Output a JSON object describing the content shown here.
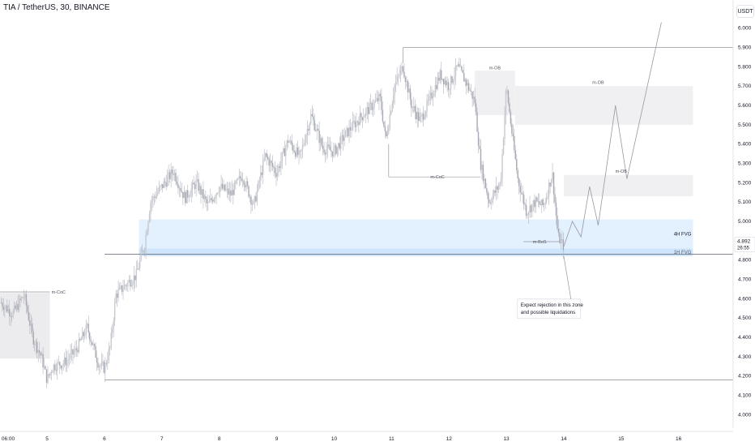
{
  "header": {
    "title": "TIA / TetherUS, 30, BINANCE",
    "currency": "USDT"
  },
  "chart_data": {
    "type": "candlestick",
    "y_ticks": [
      "6.000",
      "5.900",
      "5.800",
      "5.700",
      "5.600",
      "5.500",
      "5.400",
      "5.300",
      "5.200",
      "5.100",
      "5.000",
      "4.900",
      "4.800",
      "4.700",
      "4.600",
      "4.500",
      "4.400",
      "4.300",
      "4.200",
      "4.100",
      "4.000"
    ],
    "x_ticks": [
      {
        "label": "06:00",
        "day": 4.25
      },
      {
        "label": "5",
        "day": 5
      },
      {
        "label": "6",
        "day": 6
      },
      {
        "label": "7",
        "day": 7
      },
      {
        "label": "8",
        "day": 8
      },
      {
        "label": "9",
        "day": 9
      },
      {
        "label": "10",
        "day": 10
      },
      {
        "label": "11",
        "day": 11
      },
      {
        "label": "12",
        "day": 12
      },
      {
        "label": "13",
        "day": 13
      },
      {
        "label": "14",
        "day": 14
      },
      {
        "label": "15",
        "day": 15
      },
      {
        "label": "16",
        "day": 16
      }
    ],
    "ylim": [
      3.93,
      6.07
    ],
    "xlim": [
      4.18,
      16.95
    ],
    "price_path": [
      [
        4.2,
        4.58
      ],
      [
        4.4,
        4.52
      ],
      [
        4.6,
        4.62
      ],
      [
        4.75,
        4.4
      ],
      [
        4.9,
        4.3
      ],
      [
        5.0,
        4.18
      ],
      [
        5.1,
        4.25
      ],
      [
        5.3,
        4.27
      ],
      [
        5.5,
        4.33
      ],
      [
        5.7,
        4.45
      ],
      [
        5.9,
        4.26
      ],
      [
        6.0,
        4.24
      ],
      [
        6.1,
        4.35
      ],
      [
        6.2,
        4.62
      ],
      [
        6.4,
        4.68
      ],
      [
        6.55,
        4.72
      ],
      [
        6.7,
        4.88
      ],
      [
        6.8,
        5.1
      ],
      [
        7.0,
        5.18
      ],
      [
        7.2,
        5.26
      ],
      [
        7.4,
        5.12
      ],
      [
        7.6,
        5.2
      ],
      [
        7.8,
        5.08
      ],
      [
        8.0,
        5.18
      ],
      [
        8.2,
        5.14
      ],
      [
        8.4,
        5.24
      ],
      [
        8.6,
        5.08
      ],
      [
        8.8,
        5.34
      ],
      [
        9.0,
        5.25
      ],
      [
        9.2,
        5.42
      ],
      [
        9.4,
        5.33
      ],
      [
        9.6,
        5.55
      ],
      [
        9.8,
        5.38
      ],
      [
        10.0,
        5.36
      ],
      [
        10.2,
        5.45
      ],
      [
        10.4,
        5.52
      ],
      [
        10.6,
        5.58
      ],
      [
        10.8,
        5.64
      ],
      [
        10.9,
        5.42
      ],
      [
        11.05,
        5.7
      ],
      [
        11.2,
        5.8
      ],
      [
        11.35,
        5.6
      ],
      [
        11.5,
        5.52
      ],
      [
        11.65,
        5.62
      ],
      [
        11.85,
        5.76
      ],
      [
        12.0,
        5.7
      ],
      [
        12.15,
        5.8
      ],
      [
        12.3,
        5.72
      ],
      [
        12.45,
        5.62
      ],
      [
        12.55,
        5.3
      ],
      [
        12.7,
        5.1
      ],
      [
        12.9,
        5.2
      ],
      [
        13.0,
        5.7
      ],
      [
        13.1,
        5.45
      ],
      [
        13.2,
        5.22
      ],
      [
        13.35,
        5.05
      ],
      [
        13.5,
        5.1
      ],
      [
        13.65,
        5.08
      ],
      [
        13.8,
        5.25
      ],
      [
        13.9,
        4.92
      ],
      [
        14.0,
        4.87
      ]
    ],
    "projection": [
      [
        14.0,
        4.87
      ],
      [
        14.15,
        5.0
      ],
      [
        14.3,
        4.92
      ],
      [
        14.45,
        5.18
      ],
      [
        14.6,
        4.98
      ],
      [
        14.9,
        5.6
      ],
      [
        15.1,
        5.22
      ],
      [
        15.7,
        6.03
      ]
    ],
    "current_price": "4.892",
    "countdown": "26:55",
    "zones": [
      {
        "label": "4H FVG",
        "from_day": 6.6,
        "to_day": 16.25,
        "low": 4.86,
        "high": 5.01,
        "color": "#e3f0fd"
      },
      {
        "label": "1H FVG",
        "from_day": 6.6,
        "to_day": 16.25,
        "low": 4.82,
        "high": 4.86,
        "color": "#cfe5fb"
      },
      {
        "label": "m-OB",
        "from_day": 13.15,
        "to_day": 16.25,
        "low": 5.5,
        "high": 5.7,
        "color": "#f0f0f2"
      },
      {
        "label": "m-OB",
        "from_day": 14.0,
        "to_day": 16.25,
        "low": 5.13,
        "high": 5.24,
        "color": "#f0f0f2"
      },
      {
        "label": "m-OB",
        "from_day": 12.45,
        "to_day": 13.15,
        "low": 5.55,
        "high": 5.78,
        "color": "#f0f0f2"
      },
      {
        "label": "",
        "from_day": 4.18,
        "to_day": 5.05,
        "low": 4.29,
        "high": 4.63,
        "color": "#ececee"
      }
    ],
    "labels": [
      {
        "text": "m-CoC",
        "day": 5.2,
        "price": 4.635
      },
      {
        "text": "m-CoC",
        "day": 11.8,
        "price": 5.23
      },
      {
        "text": "m-OB",
        "day": 12.8,
        "price": 5.795
      },
      {
        "text": "m-OB",
        "day": 14.6,
        "price": 5.72
      },
      {
        "text": "m-OB",
        "day": 15.0,
        "price": 5.26
      },
      {
        "text": "m-BoS",
        "day": 13.58,
        "price": 4.895
      }
    ],
    "levels": [
      {
        "price": 5.9,
        "from_day": 11.2,
        "to_day": 16.95
      },
      {
        "price": 4.83,
        "from_day": 6.0,
        "to_day": 16.95
      },
      {
        "price": 4.18,
        "from_day": 6.0,
        "to_day": 16.95
      }
    ],
    "annotation": {
      "lines": [
        "Expect rejection in this zone",
        "and possible liquidations"
      ],
      "box_day": 13.25,
      "box_price": 4.56,
      "arrow_to_day": 14.0,
      "arrow_to_price": 4.82
    }
  }
}
